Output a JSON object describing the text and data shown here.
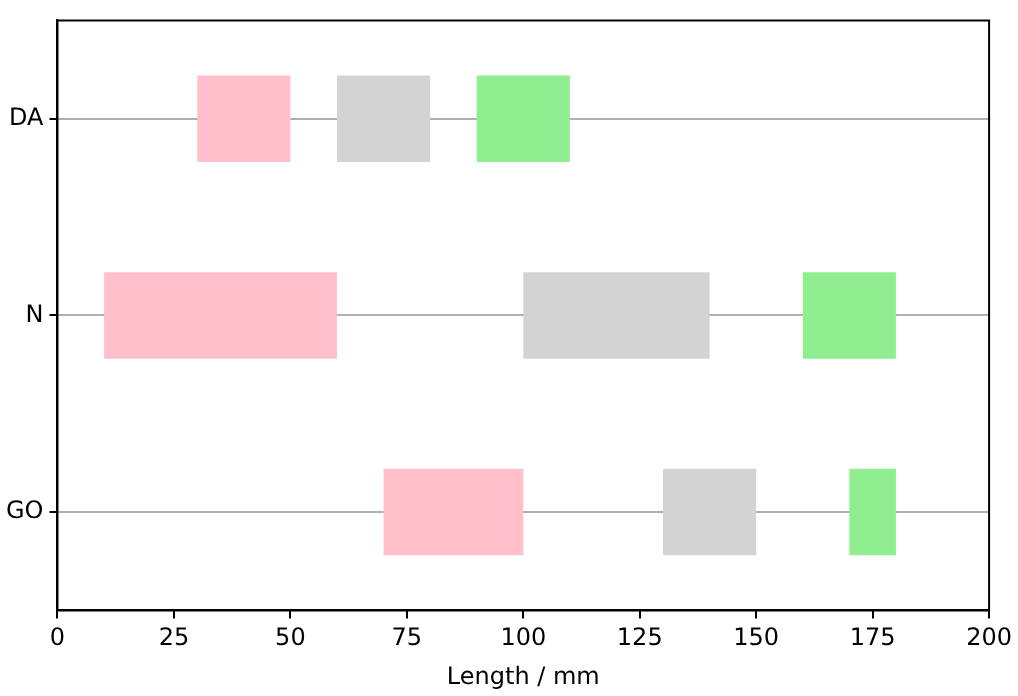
{
  "chart_data": {
    "type": "bar",
    "orientation": "horizontal",
    "xlabel": "Length / mm",
    "categories": [
      "DA",
      "N",
      "GO"
    ],
    "series": [
      {
        "color": "#ffc0cb",
        "base": [
          30,
          10,
          70
        ],
        "values": [
          20,
          50,
          30
        ]
      },
      {
        "color": "#d3d3d3",
        "base": [
          60,
          100,
          130
        ],
        "values": [
          20,
          40,
          20
        ]
      },
      {
        "color": "#90ee90",
        "base": [
          90,
          160,
          170
        ],
        "values": [
          20,
          20,
          10
        ]
      }
    ],
    "xlim": [
      0,
      200
    ],
    "xticks": [
      0,
      25,
      50,
      75,
      100,
      125,
      150,
      175,
      200
    ],
    "grid": "y",
    "legend": false
  }
}
